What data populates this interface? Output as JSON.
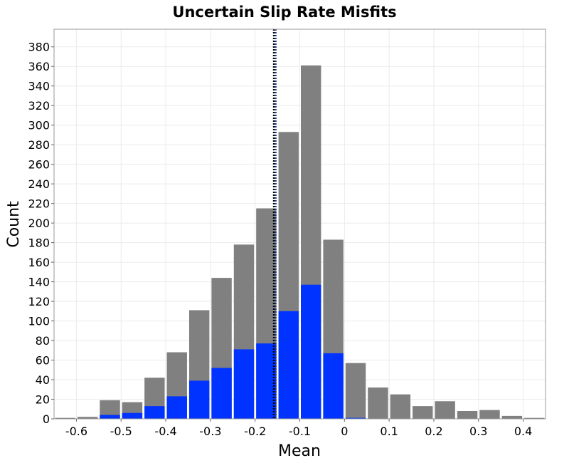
{
  "chart_data": {
    "type": "bar",
    "title": "Uncertain Slip Rate Misfits",
    "xlabel": "Mean",
    "ylabel": "Count",
    "xlim": [
      -0.65,
      0.45
    ],
    "ylim": [
      0,
      398
    ],
    "x_ticks": [
      "-0.6",
      "-0.5",
      "-0.4",
      "-0.3",
      "-0.2",
      "-0.1",
      "0",
      "0.1",
      "0.2",
      "0.3",
      "0.4"
    ],
    "y_ticks": [
      "0",
      "20",
      "40",
      "60",
      "80",
      "100",
      "120",
      "140",
      "160",
      "180",
      "200",
      "220",
      "240",
      "260",
      "280",
      "300",
      "320",
      "340",
      "360",
      "380"
    ],
    "bin_width": 0.05,
    "bin_centers": [
      -0.625,
      -0.575,
      -0.525,
      -0.475,
      -0.425,
      -0.375,
      -0.325,
      -0.275,
      -0.225,
      -0.175,
      -0.125,
      -0.075,
      -0.025,
      0.025,
      0.075,
      0.125,
      0.175,
      0.225,
      0.275,
      0.325,
      0.375,
      0.425
    ],
    "series": [
      {
        "color": "#808080",
        "values": [
          1,
          2,
          19,
          17,
          42,
          68,
          111,
          144,
          178,
          215,
          293,
          361,
          183,
          57,
          32,
          25,
          13,
          18,
          8,
          9,
          3,
          1
        ]
      },
      {
        "color": "#0033ff",
        "values": [
          0,
          0,
          4,
          6,
          13,
          23,
          39,
          52,
          71,
          77,
          110,
          137,
          67,
          1,
          0,
          0,
          0,
          0,
          0,
          0,
          0,
          0
        ]
      }
    ],
    "reference_lines": [
      {
        "x": -0.158,
        "color": "#000000",
        "style": "dotted"
      },
      {
        "x": -0.154,
        "color": "#1a3a8a",
        "style": "dotted"
      }
    ],
    "grid": true,
    "colors": {
      "grid": "#ebebeb",
      "frame": "#999999"
    }
  }
}
